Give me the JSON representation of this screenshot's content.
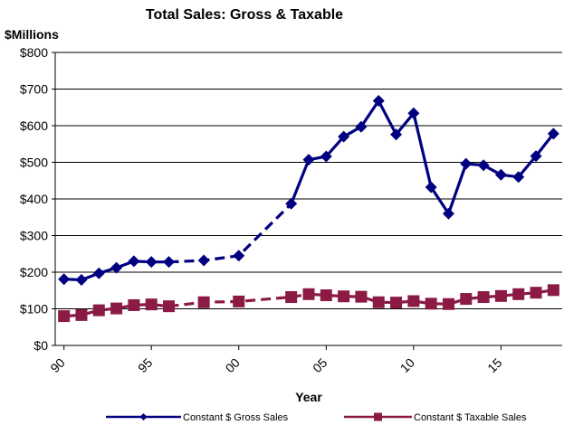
{
  "chart_data": {
    "type": "line",
    "title": "Total Sales: Gross & Taxable",
    "yunit_label": "$Millions",
    "xlabel": "Year",
    "ylim": [
      0,
      800
    ],
    "y_ticks": [
      {
        "value": 0,
        "label": "$0"
      },
      {
        "value": 100,
        "label": "$100"
      },
      {
        "value": 200,
        "label": "$200"
      },
      {
        "value": 300,
        "label": "$300"
      },
      {
        "value": 400,
        "label": "$400"
      },
      {
        "value": 500,
        "label": "$500"
      },
      {
        "value": 600,
        "label": "$600"
      },
      {
        "value": 700,
        "label": "$700"
      },
      {
        "value": 800,
        "label": "$800"
      }
    ],
    "xlim": [
      1989.5,
      2018.5
    ],
    "x_ticks": [
      {
        "value": 1990,
        "label": "90"
      },
      {
        "value": 1995,
        "label": "95"
      },
      {
        "value": 2000,
        "label": "00"
      },
      {
        "value": 2005,
        "label": "05"
      },
      {
        "value": 2010,
        "label": "10"
      },
      {
        "value": 2015,
        "label": "15"
      }
    ],
    "grid": "horizontal",
    "legend_position": "bottom",
    "series": [
      {
        "name": "Constant $ Gross Sales",
        "color": "#000080",
        "marker": "diamond",
        "points": [
          {
            "x": 1990,
            "y": 181
          },
          {
            "x": 1991,
            "y": 179
          },
          {
            "x": 1992,
            "y": 197
          },
          {
            "x": 1993,
            "y": 212
          },
          {
            "x": 1994,
            "y": 230
          },
          {
            "x": 1995,
            "y": 228
          },
          {
            "x": 1996,
            "y": 228
          },
          {
            "x": 1998,
            "y": 232
          },
          {
            "x": 2000,
            "y": 245
          },
          {
            "x": 2003,
            "y": 387
          },
          {
            "x": 2004,
            "y": 507
          },
          {
            "x": 2005,
            "y": 516
          },
          {
            "x": 2006,
            "y": 570
          },
          {
            "x": 2007,
            "y": 597
          },
          {
            "x": 2008,
            "y": 668
          },
          {
            "x": 2009,
            "y": 576
          },
          {
            "x": 2010,
            "y": 634
          },
          {
            "x": 2011,
            "y": 432
          },
          {
            "x": 2012,
            "y": 360
          },
          {
            "x": 2013,
            "y": 496
          },
          {
            "x": 2014,
            "y": 492
          },
          {
            "x": 2015,
            "y": 466
          },
          {
            "x": 2016,
            "y": 460
          },
          {
            "x": 2017,
            "y": 517
          },
          {
            "x": 2018,
            "y": 578
          }
        ],
        "segments": [
          {
            "from": 1990,
            "to": 1996,
            "style": "solid"
          },
          {
            "from": 1996,
            "to": 2003,
            "style": "dashed"
          },
          {
            "from": 2003,
            "to": 2018,
            "style": "solid"
          }
        ]
      },
      {
        "name": "Constant $ Taxable Sales",
        "color": "#8b1a44",
        "marker": "square",
        "points": [
          {
            "x": 1990,
            "y": 80
          },
          {
            "x": 1991,
            "y": 83
          },
          {
            "x": 1992,
            "y": 96
          },
          {
            "x": 1993,
            "y": 101
          },
          {
            "x": 1994,
            "y": 110
          },
          {
            "x": 1995,
            "y": 112
          },
          {
            "x": 1996,
            "y": 107
          },
          {
            "x": 1998,
            "y": 118
          },
          {
            "x": 2000,
            "y": 120
          },
          {
            "x": 2003,
            "y": 132
          },
          {
            "x": 2004,
            "y": 140
          },
          {
            "x": 2005,
            "y": 137
          },
          {
            "x": 2006,
            "y": 134
          },
          {
            "x": 2007,
            "y": 133
          },
          {
            "x": 2008,
            "y": 118
          },
          {
            "x": 2009,
            "y": 117
          },
          {
            "x": 2010,
            "y": 121
          },
          {
            "x": 2011,
            "y": 114
          },
          {
            "x": 2012,
            "y": 113
          },
          {
            "x": 2013,
            "y": 127
          },
          {
            "x": 2014,
            "y": 132
          },
          {
            "x": 2015,
            "y": 135
          },
          {
            "x": 2016,
            "y": 140
          },
          {
            "x": 2017,
            "y": 144
          },
          {
            "x": 2018,
            "y": 151
          }
        ],
        "segments": [
          {
            "from": 1990,
            "to": 1996,
            "style": "solid"
          },
          {
            "from": 1996,
            "to": 2004,
            "style": "dashed"
          },
          {
            "from": 2004,
            "to": 2018,
            "style": "solid"
          }
        ]
      }
    ]
  }
}
